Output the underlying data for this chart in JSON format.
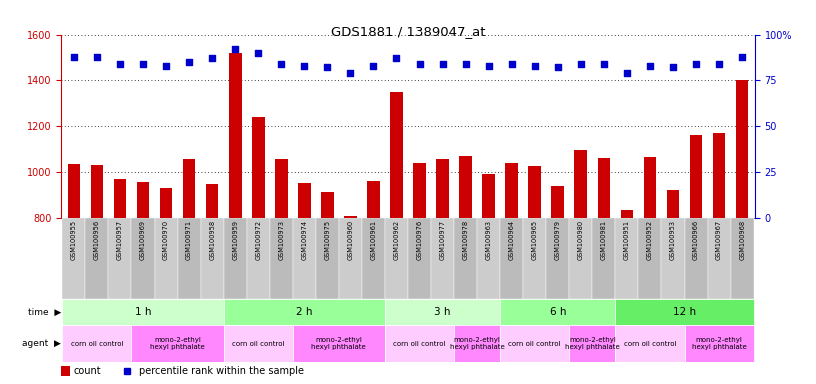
{
  "title": "GDS1881 / 1389047_at",
  "samples": [
    "GSM100955",
    "GSM100956",
    "GSM100957",
    "GSM100969",
    "GSM100970",
    "GSM100971",
    "GSM100958",
    "GSM100959",
    "GSM100972",
    "GSM100973",
    "GSM100974",
    "GSM100975",
    "GSM100960",
    "GSM100961",
    "GSM100962",
    "GSM100976",
    "GSM100977",
    "GSM100978",
    "GSM100963",
    "GSM100964",
    "GSM100965",
    "GSM100979",
    "GSM100980",
    "GSM100981",
    "GSM100951",
    "GSM100952",
    "GSM100953",
    "GSM100966",
    "GSM100967",
    "GSM100968"
  ],
  "counts": [
    1035,
    1030,
    970,
    955,
    930,
    1055,
    945,
    1520,
    1240,
    1055,
    950,
    910,
    805,
    960,
    1350,
    1040,
    1055,
    1070,
    990,
    1040,
    1025,
    940,
    1095,
    1060,
    835,
    1065,
    920,
    1160,
    1170,
    1400
  ],
  "percentiles": [
    88,
    88,
    84,
    84,
    83,
    85,
    87,
    92,
    90,
    84,
    83,
    82,
    79,
    83,
    87,
    84,
    84,
    84,
    83,
    84,
    83,
    82,
    84,
    84,
    79,
    83,
    82,
    84,
    84,
    88
  ],
  "ylim_left": [
    800,
    1600
  ],
  "ylim_right": [
    0,
    100
  ],
  "yticks_left": [
    800,
    1000,
    1200,
    1400,
    1600
  ],
  "yticks_right": [
    0,
    25,
    50,
    75,
    100
  ],
  "bar_color": "#cc0000",
  "dot_color": "#0000cc",
  "time_groups": [
    {
      "label": "1 h",
      "start": 0,
      "end": 7,
      "color": "#ccffcc"
    },
    {
      "label": "2 h",
      "start": 7,
      "end": 14,
      "color": "#99ff99"
    },
    {
      "label": "3 h",
      "start": 14,
      "end": 19,
      "color": "#ccffcc"
    },
    {
      "label": "6 h",
      "start": 19,
      "end": 24,
      "color": "#99ff99"
    },
    {
      "label": "12 h",
      "start": 24,
      "end": 30,
      "color": "#66ee66"
    }
  ],
  "agent_groups": [
    {
      "label": "corn oil control",
      "start": 0,
      "end": 3,
      "color": "#ffccff"
    },
    {
      "label": "mono-2-ethyl\nhexyl phthalate",
      "start": 3,
      "end": 7,
      "color": "#ff88ff"
    },
    {
      "label": "corn oil control",
      "start": 7,
      "end": 10,
      "color": "#ffccff"
    },
    {
      "label": "mono-2-ethyl\nhexyl phthalate",
      "start": 10,
      "end": 14,
      "color": "#ff88ff"
    },
    {
      "label": "corn oil control",
      "start": 14,
      "end": 17,
      "color": "#ffccff"
    },
    {
      "label": "mono-2-ethyl\nhexyl phthalate",
      "start": 17,
      "end": 19,
      "color": "#ff88ff"
    },
    {
      "label": "corn oil control",
      "start": 19,
      "end": 22,
      "color": "#ffccff"
    },
    {
      "label": "mono-2-ethyl\nhexyl phthalate",
      "start": 22,
      "end": 24,
      "color": "#ff88ff"
    },
    {
      "label": "corn oil control",
      "start": 24,
      "end": 27,
      "color": "#ffccff"
    },
    {
      "label": "mono-2-ethyl\nhexyl phthalate",
      "start": 27,
      "end": 30,
      "color": "#ff88ff"
    }
  ],
  "bg_color": "#ffffff",
  "bar_color_left": "#cc0000",
  "tick_color_left": "#cc0000",
  "tick_color_right": "#0000cc",
  "sample_bg_color": "#cccccc",
  "sample_border_color": "#ffffff"
}
